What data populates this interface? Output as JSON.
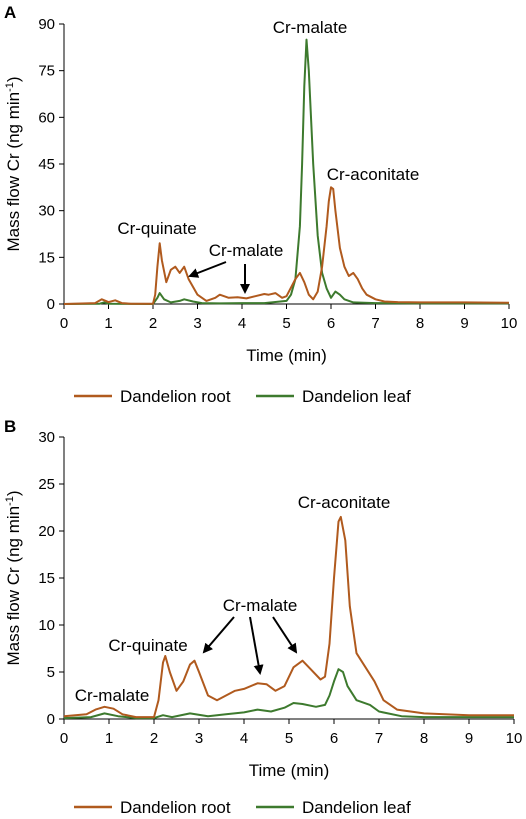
{
  "figure": {
    "colors": {
      "root": "#b05a1e",
      "leaf": "#3d7a2e",
      "axis": "#000000"
    }
  },
  "chart_data": [
    {
      "panel_label": "A",
      "type": "line",
      "xlabel": "Time (min)",
      "ylabel": "Mass flow Cr (ng min",
      "ylabel_sup": "-1",
      "ylabel_close": ")",
      "xlim": [
        0,
        10
      ],
      "ylim": [
        0,
        90
      ],
      "xticks": [
        "0",
        "1",
        "2",
        "3",
        "4",
        "5",
        "6",
        "7",
        "8",
        "9",
        "10"
      ],
      "yticks": [
        "0",
        "15",
        "30",
        "45",
        "60",
        "75",
        "90"
      ],
      "legend": [
        "Dandelion root",
        "Dandelion leaf"
      ],
      "legend_position": "bottom",
      "annotations": [
        {
          "text": "Cr-malate",
          "x": 5.45,
          "y": 84
        },
        {
          "text": "Cr-aconitate",
          "x": 6.0,
          "y": 37
        },
        {
          "text": "Cr-quinate",
          "x": 2.15,
          "y": 19
        },
        {
          "text": "Cr-malate",
          "x": 2.6,
          "y": 11
        },
        {
          "text": "Cr-malate",
          "x": 4.05,
          "y": 2
        }
      ],
      "series": [
        {
          "name": "Dandelion root",
          "points": [
            [
              0,
              0
            ],
            [
              0.7,
              0.3
            ],
            [
              0.85,
              1.5
            ],
            [
              1.0,
              0.6
            ],
            [
              1.15,
              1.2
            ],
            [
              1.3,
              0.3
            ],
            [
              1.5,
              0.1
            ],
            [
              2.0,
              0.1
            ],
            [
              2.05,
              3
            ],
            [
              2.1,
              12
            ],
            [
              2.15,
              19.5
            ],
            [
              2.2,
              14
            ],
            [
              2.3,
              7
            ],
            [
              2.4,
              11
            ],
            [
              2.5,
              12
            ],
            [
              2.6,
              10
            ],
            [
              2.7,
              12
            ],
            [
              2.8,
              8
            ],
            [
              3.0,
              3
            ],
            [
              3.2,
              1
            ],
            [
              3.4,
              2
            ],
            [
              3.5,
              3
            ],
            [
              3.7,
              2
            ],
            [
              3.9,
              2.2
            ],
            [
              4.1,
              1.8
            ],
            [
              4.3,
              2.5
            ],
            [
              4.5,
              3.2
            ],
            [
              4.6,
              3
            ],
            [
              4.75,
              3.5
            ],
            [
              4.9,
              2
            ],
            [
              5.0,
              2.5
            ],
            [
              5.2,
              8
            ],
            [
              5.3,
              10
            ],
            [
              5.4,
              7
            ],
            [
              5.5,
              3
            ],
            [
              5.6,
              1.5
            ],
            [
              5.7,
              4
            ],
            [
              5.8,
              12
            ],
            [
              5.9,
              25
            ],
            [
              5.95,
              33
            ],
            [
              6.0,
              37.5
            ],
            [
              6.05,
              37
            ],
            [
              6.1,
              30
            ],
            [
              6.2,
              18
            ],
            [
              6.3,
              12
            ],
            [
              6.4,
              9
            ],
            [
              6.5,
              10
            ],
            [
              6.6,
              8
            ],
            [
              6.7,
              5
            ],
            [
              6.8,
              3
            ],
            [
              7.0,
              1.5
            ],
            [
              7.2,
              0.8
            ],
            [
              7.5,
              0.6
            ],
            [
              8.0,
              0.5
            ],
            [
              9.0,
              0.5
            ],
            [
              10.0,
              0.4
            ]
          ]
        },
        {
          "name": "Dandelion leaf",
          "points": [
            [
              0,
              0
            ],
            [
              0.8,
              0.1
            ],
            [
              0.9,
              0.5
            ],
            [
              1.0,
              0.1
            ],
            [
              2.0,
              0
            ],
            [
              2.1,
              2
            ],
            [
              2.15,
              3.5
            ],
            [
              2.25,
              1.5
            ],
            [
              2.4,
              0.5
            ],
            [
              2.6,
              1
            ],
            [
              2.7,
              1.5
            ],
            [
              2.9,
              0.8
            ],
            [
              3.1,
              0.3
            ],
            [
              3.5,
              0.2
            ],
            [
              4.0,
              0.3
            ],
            [
              4.5,
              0.3
            ],
            [
              5.0,
              1
            ],
            [
              5.1,
              3
            ],
            [
              5.2,
              8
            ],
            [
              5.3,
              25
            ],
            [
              5.35,
              45
            ],
            [
              5.4,
              70
            ],
            [
              5.45,
              85
            ],
            [
              5.5,
              75
            ],
            [
              5.6,
              45
            ],
            [
              5.7,
              22
            ],
            [
              5.8,
              10
            ],
            [
              5.9,
              5
            ],
            [
              6.0,
              2
            ],
            [
              6.1,
              4
            ],
            [
              6.2,
              3
            ],
            [
              6.3,
              1.5
            ],
            [
              6.5,
              0.5
            ],
            [
              7.0,
              0.3
            ],
            [
              8.0,
              0.2
            ],
            [
              9.0,
              0.2
            ],
            [
              10.0,
              0.2
            ]
          ]
        }
      ]
    },
    {
      "panel_label": "B",
      "type": "line",
      "xlabel": "Time (min)",
      "ylabel": "Mass flow Cr (ng min",
      "ylabel_sup": "-1",
      "ylabel_close": ")",
      "xlim": [
        0,
        10
      ],
      "ylim": [
        0,
        30
      ],
      "xticks": [
        "0",
        "1",
        "2",
        "3",
        "4",
        "5",
        "6",
        "7",
        "8",
        "9",
        "10"
      ],
      "yticks": [
        "0",
        "5",
        "10",
        "15",
        "20",
        "25",
        "30"
      ],
      "legend": [
        "Dandelion root",
        "Dandelion leaf"
      ],
      "legend_position": "bottom",
      "annotations": [
        {
          "text": "Cr-aconitate",
          "x": 6.15,
          "y": 21.5
        },
        {
          "text": "Cr-malate",
          "x": 4.1,
          "y": 10.5
        },
        {
          "text": "Cr-quinate",
          "x": 2.45,
          "y": 7
        },
        {
          "text": "Cr-malate",
          "x": 0.85,
          "y": 1.5
        }
      ],
      "series": [
        {
          "name": "Dandelion root",
          "points": [
            [
              0,
              0.3
            ],
            [
              0.5,
              0.5
            ],
            [
              0.7,
              1.0
            ],
            [
              0.9,
              1.3
            ],
            [
              1.1,
              1.1
            ],
            [
              1.3,
              0.5
            ],
            [
              1.6,
              0.2
            ],
            [
              2.0,
              0.2
            ],
            [
              2.1,
              2
            ],
            [
              2.2,
              6
            ],
            [
              2.25,
              6.7
            ],
            [
              2.35,
              5
            ],
            [
              2.5,
              3
            ],
            [
              2.65,
              4
            ],
            [
              2.8,
              5.8
            ],
            [
              2.9,
              6.2
            ],
            [
              3.0,
              5
            ],
            [
              3.2,
              2.5
            ],
            [
              3.4,
              2
            ],
            [
              3.6,
              2.5
            ],
            [
              3.8,
              3
            ],
            [
              4.0,
              3.2
            ],
            [
              4.3,
              3.8
            ],
            [
              4.5,
              3.7
            ],
            [
              4.7,
              3
            ],
            [
              4.9,
              3.5
            ],
            [
              5.1,
              5.5
            ],
            [
              5.3,
              6.2
            ],
            [
              5.5,
              5.2
            ],
            [
              5.7,
              4.2
            ],
            [
              5.8,
              4.5
            ],
            [
              5.9,
              8
            ],
            [
              6.0,
              15
            ],
            [
              6.1,
              21
            ],
            [
              6.15,
              21.5
            ],
            [
              6.25,
              19
            ],
            [
              6.35,
              12
            ],
            [
              6.5,
              7
            ],
            [
              6.7,
              5.5
            ],
            [
              6.9,
              4
            ],
            [
              7.1,
              2
            ],
            [
              7.4,
              1
            ],
            [
              8.0,
              0.6
            ],
            [
              9.0,
              0.4
            ],
            [
              10.0,
              0.4
            ]
          ]
        },
        {
          "name": "Dandelion leaf",
          "points": [
            [
              0,
              0.1
            ],
            [
              0.6,
              0.2
            ],
            [
              0.9,
              0.6
            ],
            [
              1.2,
              0.3
            ],
            [
              1.6,
              0.1
            ],
            [
              2.0,
              0.1
            ],
            [
              2.2,
              0.4
            ],
            [
              2.4,
              0.2
            ],
            [
              2.8,
              0.6
            ],
            [
              3.2,
              0.3
            ],
            [
              3.6,
              0.5
            ],
            [
              4.0,
              0.7
            ],
            [
              4.3,
              1
            ],
            [
              4.6,
              0.8
            ],
            [
              4.9,
              1.2
            ],
            [
              5.1,
              1.7
            ],
            [
              5.3,
              1.6
            ],
            [
              5.6,
              1.3
            ],
            [
              5.8,
              1.5
            ],
            [
              5.9,
              2.5
            ],
            [
              6.0,
              4
            ],
            [
              6.1,
              5.3
            ],
            [
              6.2,
              5
            ],
            [
              6.3,
              3.5
            ],
            [
              6.5,
              2
            ],
            [
              6.8,
              1.5
            ],
            [
              7.0,
              0.8
            ],
            [
              7.5,
              0.3
            ],
            [
              8.0,
              0.2
            ],
            [
              9.0,
              0.2
            ],
            [
              10.0,
              0.2
            ]
          ]
        }
      ]
    }
  ]
}
